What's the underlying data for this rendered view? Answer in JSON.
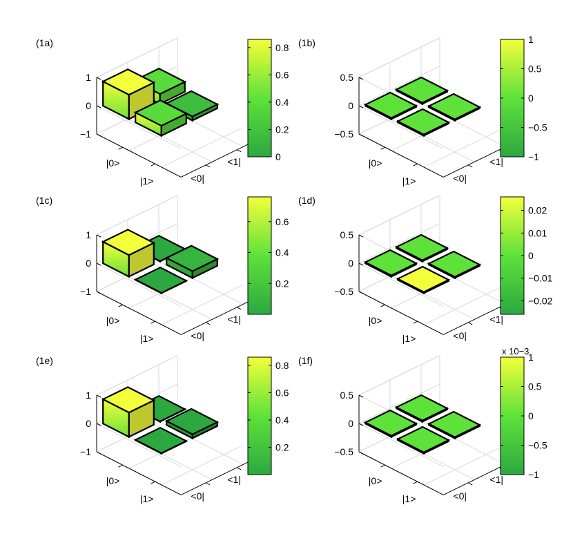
{
  "chart_data": [
    {
      "type": "bar3d",
      "panel_label": "(1a)",
      "row_labels": [
        "|0>",
        "|1>"
      ],
      "col_labels": [
        "<0|",
        "<1|"
      ],
      "values": [
        [
          0.86,
          0.35
        ],
        [
          0.35,
          0.14
        ]
      ],
      "zlim": [
        -1,
        1
      ],
      "zticks": [
        "1",
        "0",
        "−1"
      ],
      "colorbar": {
        "ticks": [
          "0.8",
          "0.6",
          "0.4",
          "0.2",
          "0"
        ],
        "exponent": ""
      }
    },
    {
      "type": "bar3d",
      "panel_label": "(1b)",
      "row_labels": [
        "|0>",
        "|1>"
      ],
      "col_labels": [
        "<0|",
        "<1|"
      ],
      "values": [
        [
          0,
          0
        ],
        [
          0,
          0
        ]
      ],
      "zlim": [
        -0.5,
        0.5
      ],
      "zticks": [
        "0.5",
        "0",
        "−0.5"
      ],
      "colorbar": {
        "ticks": [
          "1",
          "0.5",
          "0",
          "−0.5",
          "−1"
        ],
        "exponent": ""
      }
    },
    {
      "type": "bar3d",
      "panel_label": "(1c)",
      "row_labels": [
        "|0>",
        "|1>"
      ],
      "col_labels": [
        "<0|",
        "<1|"
      ],
      "values": [
        [
          0.76,
          0.01
        ],
        [
          0.01,
          0.24
        ]
      ],
      "zlim": [
        -1,
        1
      ],
      "zticks": [
        "1",
        "0",
        "−1"
      ],
      "colorbar": {
        "ticks": [
          "0.6",
          "0.4",
          "0.2"
        ],
        "exponent": ""
      }
    },
    {
      "type": "bar3d",
      "panel_label": "(1d)",
      "row_labels": [
        "|0>",
        "|1>"
      ],
      "col_labels": [
        "<0|",
        "<1|"
      ],
      "values": [
        [
          0,
          0
        ],
        [
          0.026,
          0
        ]
      ],
      "zlim": [
        -0.5,
        0.5
      ],
      "zticks": [
        "0.5",
        "0",
        "−0.5"
      ],
      "colorbar": {
        "ticks": [
          "0.02",
          "0.01",
          "0",
          "−0.01",
          "−0.02"
        ],
        "exponent": ""
      }
    },
    {
      "type": "bar3d",
      "panel_label": "(1e)",
      "row_labels": [
        "|0>",
        "|1>"
      ],
      "col_labels": [
        "<0|",
        "<1|"
      ],
      "values": [
        [
          0.86,
          0.01
        ],
        [
          0.01,
          0.14
        ]
      ],
      "zlim": [
        -1,
        1
      ],
      "zticks": [
        "1",
        "0",
        "−1"
      ],
      "colorbar": {
        "ticks": [
          "0.8",
          "0.6",
          "0.4",
          "0.2"
        ],
        "exponent": ""
      }
    },
    {
      "type": "bar3d",
      "panel_label": "(1f)",
      "row_labels": [
        "|0>",
        "|1>"
      ],
      "col_labels": [
        "<0|",
        "<1|"
      ],
      "values": [
        [
          0,
          0
        ],
        [
          0.001,
          0
        ]
      ],
      "zlim": [
        -0.5,
        0.5
      ],
      "zticks": [
        "0.5",
        "0",
        "−0.5"
      ],
      "colorbar": {
        "ticks": [
          "1",
          "0.5",
          "0",
          "−0.5",
          "−1"
        ],
        "exponent": "x 10−3"
      }
    }
  ],
  "colors": {
    "low": "#2ca840",
    "mid": "#5ee23a",
    "high": "#f3ff3a",
    "edge": "#000000",
    "grid": "#d9d9d9"
  }
}
